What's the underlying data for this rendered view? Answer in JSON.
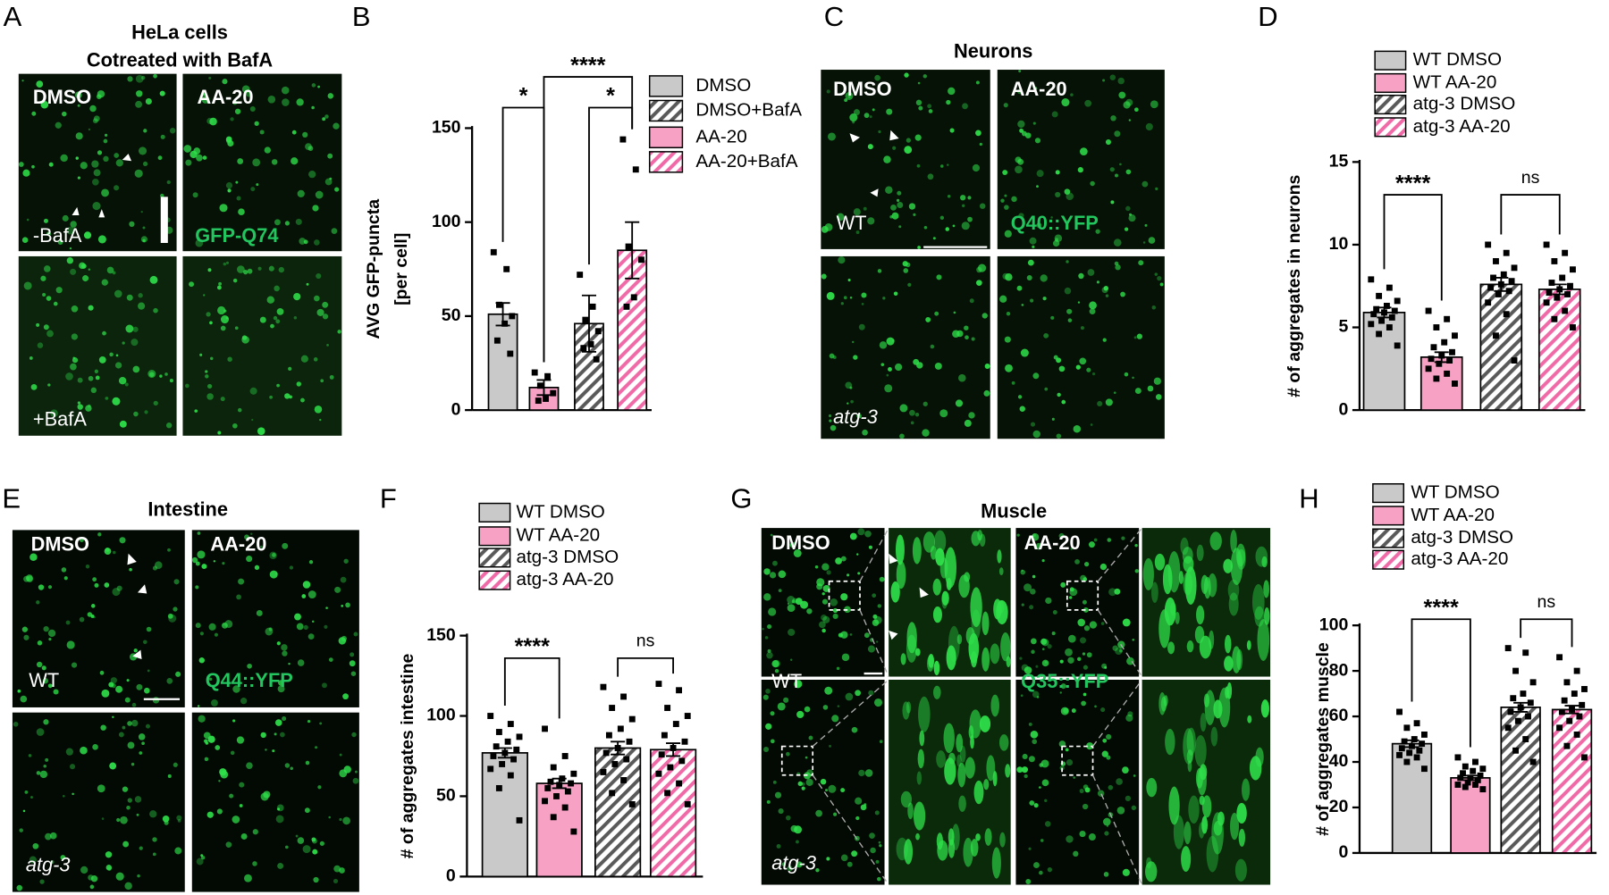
{
  "image_panels": [
    {
      "letter": "A",
      "title": [
        "HeLa cells",
        "Cotreated with BafA"
      ],
      "labels": [
        "DMSO",
        "AA-20",
        "-BafA",
        "GFP-Q74",
        "+BafA"
      ]
    },
    {
      "letter": "C",
      "title": [
        "Neurons"
      ],
      "labels": [
        "DMSO",
        "AA-20",
        "WT",
        "Q40::YFP",
        "atg-3"
      ]
    },
    {
      "letter": "E",
      "title": [
        "Intestine"
      ],
      "labels": [
        "DMSO",
        "AA-20",
        "WT",
        "Q44::YFP",
        "atg-3"
      ]
    },
    {
      "letter": "G",
      "title": [
        "Muscle"
      ],
      "labels": [
        "DMSO",
        "AA-20",
        "WT",
        "Q35::YFP",
        "atg-3"
      ]
    }
  ],
  "chart_data": [
    {
      "type": "bar",
      "panel": "B",
      "ylabel": [
        "AVG GFP-puncta",
        "[per cell]"
      ],
      "ylim": [
        0,
        150
      ],
      "yticks": [
        0,
        50,
        100,
        150
      ],
      "legend": [
        "DMSO",
        "DMSO+BafA",
        "AA-20",
        "AA-20+BafA"
      ],
      "bars": [
        {
          "name": "DMSO",
          "color": "#c9c9c9",
          "hatch": false,
          "value": 51,
          "error": 6,
          "points": [
            84,
            75,
            56,
            50,
            46,
            37,
            30
          ]
        },
        {
          "name": "AA-20",
          "color": "#f7a1c4",
          "hatch": false,
          "value": 12,
          "error": 4,
          "points": [
            20,
            18,
            13,
            9,
            6,
            5
          ]
        },
        {
          "name": "DMSO+BafA",
          "color": "#5a5a5a",
          "hatch": true,
          "value": 46,
          "error": 15,
          "points": [
            72,
            55,
            48,
            42,
            35,
            33,
            27
          ]
        },
        {
          "name": "AA-20+BafA",
          "color": "#f06aa8",
          "hatch": true,
          "value": 85,
          "error": 15,
          "points": [
            144,
            128,
            87,
            80,
            60,
            55
          ]
        }
      ],
      "significance": [
        {
          "pair": [
            "DMSO",
            "AA-20"
          ],
          "label": "*"
        },
        {
          "pair": [
            "DMSO+BafA",
            "AA-20+BafA"
          ],
          "label": "*"
        },
        {
          "pair": [
            "AA-20",
            "AA-20+BafA"
          ],
          "label": "****"
        }
      ]
    },
    {
      "type": "bar",
      "panel": "D",
      "ylabel": [
        "# of aggregates in neurons"
      ],
      "ylim": [
        0,
        15
      ],
      "yticks": [
        0,
        5,
        10,
        15
      ],
      "legend": [
        "WT DMSO",
        "WT AA-20",
        "atg-3 DMSO",
        "atg-3 AA-20"
      ],
      "bars": [
        {
          "name": "WT DMSO",
          "color": "#c9c9c9",
          "hatch": false,
          "value": 5.9,
          "error": 0.3,
          "points": [
            7.9,
            7.4,
            6.9,
            6.6,
            6.3,
            6.1,
            6.0,
            5.9,
            5.8,
            5.6,
            5.4,
            5.2,
            5.0,
            4.6,
            3.9
          ]
        },
        {
          "name": "WT AA-20",
          "color": "#f7a1c4",
          "hatch": false,
          "value": 3.2,
          "error": 0.3,
          "points": [
            6.0,
            5.5,
            5.0,
            4.5,
            4.1,
            3.8,
            3.5,
            3.3,
            3.1,
            3.0,
            2.8,
            2.5,
            2.2,
            1.9,
            1.6
          ]
        },
        {
          "name": "atg-3 DMSO",
          "color": "#5a5a5a",
          "hatch": true,
          "value": 7.6,
          "error": 0.4,
          "points": [
            10.0,
            9.5,
            9.0,
            8.6,
            8.2,
            8.0,
            7.8,
            7.6,
            7.4,
            7.2,
            7.0,
            6.5,
            5.8,
            4.5,
            3.0
          ]
        },
        {
          "name": "atg-3 AA-20",
          "color": "#f06aa8",
          "hatch": true,
          "value": 7.3,
          "error": 0.3,
          "points": [
            10.0,
            9.5,
            9.0,
            8.5,
            8.0,
            7.7,
            7.5,
            7.3,
            7.1,
            7.0,
            6.8,
            6.5,
            6.0,
            5.5,
            5.0
          ]
        }
      ],
      "significance": [
        {
          "pair": [
            "WT DMSO",
            "WT AA-20"
          ],
          "label": "****"
        },
        {
          "pair": [
            "atg-3 DMSO",
            "atg-3 AA-20"
          ],
          "label": "ns"
        }
      ]
    },
    {
      "type": "bar",
      "panel": "F",
      "ylabel": [
        "# of aggregates intestine"
      ],
      "ylim": [
        0,
        150
      ],
      "yticks": [
        0,
        50,
        100,
        150
      ],
      "legend": [
        "WT DMSO",
        "WT AA-20",
        "atg-3 DMSO",
        "atg-3 AA-20"
      ],
      "bars": [
        {
          "name": "WT DMSO",
          "color": "#c9c9c9",
          "hatch": false,
          "value": 77,
          "error": 3,
          "points": [
            100,
            95,
            90,
            87,
            84,
            81,
            79,
            77,
            75,
            73,
            70,
            67,
            63,
            55,
            35
          ]
        },
        {
          "name": "WT AA-20",
          "color": "#f7a1c4",
          "hatch": false,
          "value": 58,
          "error": 3,
          "points": [
            92,
            75,
            68,
            64,
            61,
            59,
            58,
            57,
            55,
            53,
            50,
            47,
            43,
            37,
            28
          ]
        },
        {
          "name": "atg-3 DMSO",
          "color": "#5a5a5a",
          "hatch": true,
          "value": 80,
          "error": 4,
          "points": [
            118,
            112,
            105,
            98,
            92,
            88,
            84,
            80,
            77,
            73,
            70,
            65,
            60,
            52,
            45
          ]
        },
        {
          "name": "atg-3 AA-20",
          "color": "#f06aa8",
          "hatch": true,
          "value": 79,
          "error": 4,
          "points": [
            120,
            116,
            105,
            100,
            95,
            88,
            84,
            80,
            76,
            72,
            68,
            64,
            58,
            52,
            45
          ]
        }
      ],
      "significance": [
        {
          "pair": [
            "WT DMSO",
            "WT AA-20"
          ],
          "label": "****"
        },
        {
          "pair": [
            "atg-3 DMSO",
            "atg-3 AA-20"
          ],
          "label": "ns"
        }
      ]
    },
    {
      "type": "bar",
      "panel": "H",
      "ylabel": [
        "# of aggregates muscle"
      ],
      "ylim": [
        0,
        100
      ],
      "yticks": [
        0,
        20,
        40,
        60,
        80,
        100
      ],
      "legend": [
        "WT DMSO",
        "WT AA-20",
        "atg-3 DMSO",
        "atg-3 AA-20"
      ],
      "bars": [
        {
          "name": "WT DMSO",
          "color": "#c9c9c9",
          "hatch": false,
          "value": 48,
          "error": 1.5,
          "points": [
            62,
            57,
            55,
            52,
            50,
            49,
            48,
            47,
            46,
            45,
            44,
            43,
            42,
            40,
            37
          ]
        },
        {
          "name": "WT AA-20",
          "color": "#f7a1c4",
          "hatch": false,
          "value": 33,
          "error": 1,
          "points": [
            42,
            40,
            38,
            37,
            36,
            35,
            34,
            33,
            33,
            32,
            31,
            30,
            30,
            29,
            28
          ]
        },
        {
          "name": "atg-3 DMSO",
          "color": "#5a5a5a",
          "hatch": true,
          "value": 64,
          "error": 2,
          "points": [
            90,
            88,
            80,
            75,
            70,
            68,
            66,
            64,
            62,
            60,
            58,
            55,
            50,
            45,
            40
          ]
        },
        {
          "name": "atg-3 AA-20",
          "color": "#f06aa8",
          "hatch": true,
          "value": 63,
          "error": 1.7,
          "points": [
            86,
            80,
            75,
            72,
            70,
            67,
            65,
            63,
            62,
            60,
            58,
            55,
            52,
            47,
            42
          ]
        }
      ],
      "significance": [
        {
          "pair": [
            "WT DMSO",
            "WT AA-20"
          ],
          "label": "****"
        },
        {
          "pair": [
            "atg-3 DMSO",
            "atg-3 AA-20"
          ],
          "label": "ns"
        }
      ]
    }
  ]
}
